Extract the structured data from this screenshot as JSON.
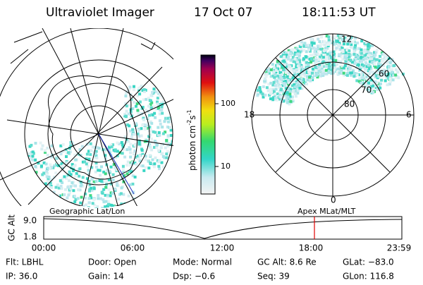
{
  "header": {
    "title": "Ultraviolet Imager",
    "date": "17 Oct 07",
    "time": "18:11:53 UT"
  },
  "colorbar": {
    "label": {
      "unit": "photon cm",
      "exp1": "-2",
      "mid": "s",
      "exp2": "-1"
    },
    "ticks": [
      "100",
      "10"
    ]
  },
  "polar_right": {
    "mlt_labels": [
      "12",
      "18",
      "6",
      "0"
    ],
    "lat_labels": [
      "60",
      "70",
      "80"
    ]
  },
  "panel_labels": {
    "left": "Geographic Lat/Lon",
    "right": "Apex MLat/MLT"
  },
  "orbit_plot": {
    "y_label": "GC Alt",
    "yticks": [
      "9.0",
      "1.8"
    ],
    "xticks": [
      "00:00",
      "06:00",
      "12:00",
      "18:00",
      "23:59"
    ]
  },
  "info": {
    "rows": [
      [
        "Flt: LBHL",
        "Door: Open",
        "Mode: Normal",
        "GC Alt: 8.6 Re",
        "GLat: −83.0"
      ],
      [
        "IP: 36.0",
        "Gain: 14",
        "Dsp:   −0.6",
        "Seq: 39",
        "GLon: 116.8"
      ]
    ]
  }
}
